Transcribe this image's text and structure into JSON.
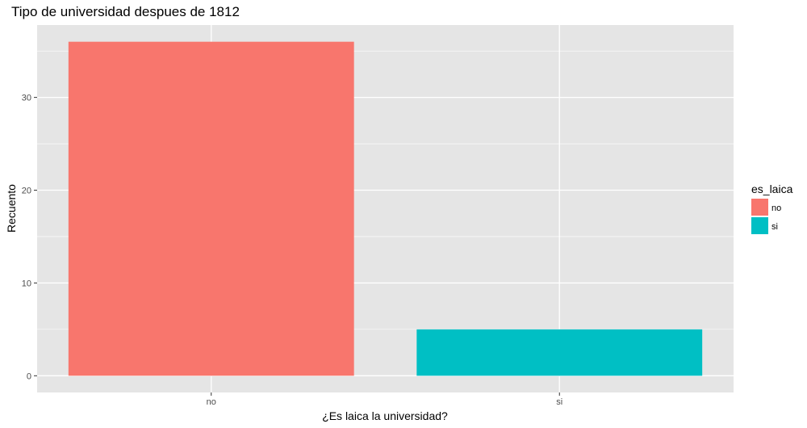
{
  "chart_data": {
    "type": "bar",
    "title": "Tipo de universidad despues de 1812",
    "xlabel": "¿Es laica la universidad?",
    "ylabel": "Recuento",
    "categories": [
      "no",
      "si"
    ],
    "values": [
      36,
      5
    ],
    "colors": [
      "#F8766D",
      "#00BFC4"
    ],
    "ylim": [
      -1.8,
      37.8
    ],
    "yticks": [
      0,
      10,
      20,
      30
    ],
    "grid": true,
    "legend": {
      "title": "es_laica",
      "placement": "right",
      "entries": [
        {
          "label": "no",
          "color": "#F8766D"
        },
        {
          "label": "si",
          "color": "#00BFC4"
        }
      ]
    },
    "panel_background": "#E5E5E5",
    "gridline_color": "#FFFFFF"
  }
}
